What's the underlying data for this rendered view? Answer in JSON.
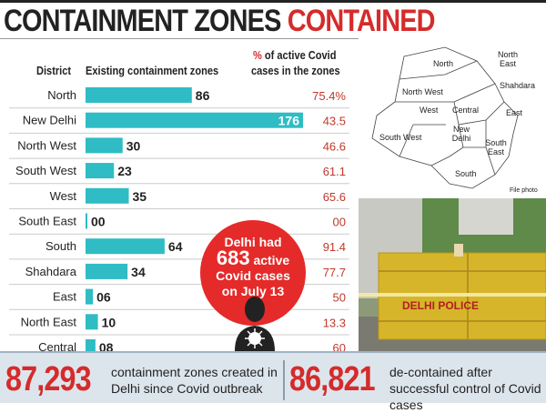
{
  "title": {
    "part1": "CONTAINMENT ZONES",
    "part2": "CONTAINED"
  },
  "colors": {
    "bar": "#2fbcc4",
    "accent": "#d52b2b",
    "pct": "#c0392b"
  },
  "chart_data": {
    "type": "bar",
    "orientation": "horizontal",
    "headers": {
      "district": "District",
      "zones": "Existing containment zones",
      "pct_prefix": "%",
      "pct_line1": " of active Covid",
      "pct_line2": "cases in the zones"
    },
    "categories": [
      "North",
      "New Delhi",
      "North West",
      "South West",
      "West",
      "South East",
      "South",
      "Shahdara",
      "East",
      "North East",
      "Central"
    ],
    "values": [
      86,
      176,
      30,
      23,
      35,
      0,
      64,
      34,
      6,
      10,
      8
    ],
    "value_labels": [
      "86",
      "176",
      "30",
      "23",
      "35",
      "00",
      "64",
      "34",
      "06",
      "10",
      "08"
    ],
    "pct_labels": [
      "75.4%",
      "43.5",
      "46.6",
      "61.1",
      "65.6",
      "00",
      "91.4",
      "77.7",
      "50",
      "13.3",
      "60"
    ]
  },
  "callout": {
    "line1": "Delhi had",
    "number": "683",
    "line2": " active",
    "line3": "Covid cases",
    "line4": "on July 13"
  },
  "map": {
    "labels": [
      "North",
      "North East",
      "Shahdara",
      "North West",
      "West",
      "Central",
      "East",
      "South West",
      "New Delhi",
      "South East",
      "South"
    ],
    "credit": "File photo"
  },
  "photo": {
    "barricade_text": "DELHI POLICE"
  },
  "footer": {
    "left_number": "87,293",
    "left_text": "containment zones created in Delhi since Covid outbreak",
    "right_number": "86,821",
    "right_text": "de-contained after successful control of Covid cases"
  }
}
